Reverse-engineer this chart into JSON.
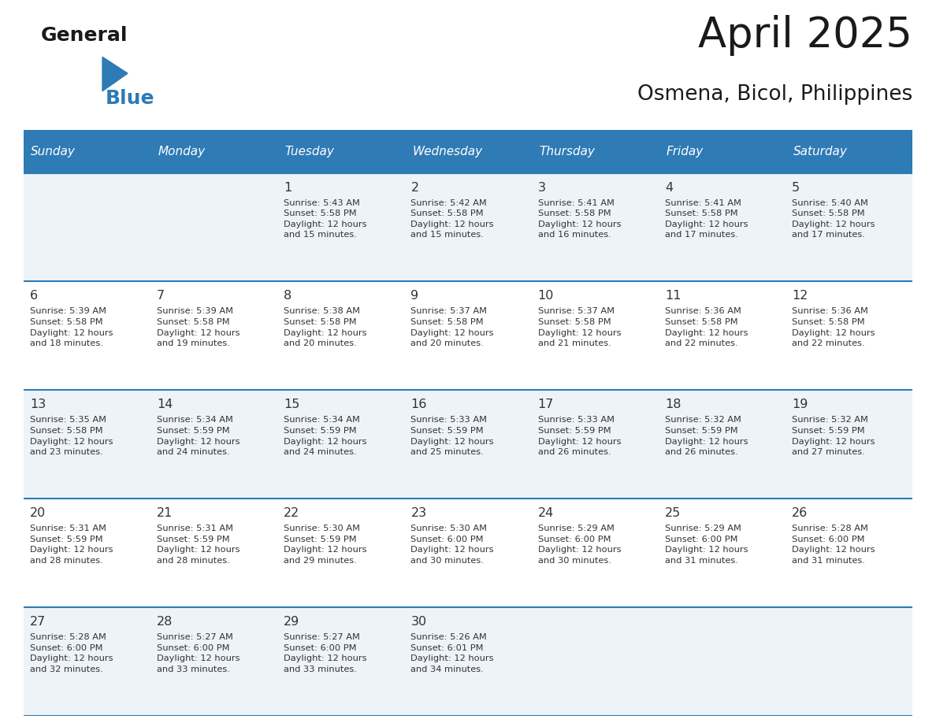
{
  "title": "April 2025",
  "subtitle": "Osmena, Bicol, Philippines",
  "days_of_week": [
    "Sunday",
    "Monday",
    "Tuesday",
    "Wednesday",
    "Thursday",
    "Friday",
    "Saturday"
  ],
  "header_bg": "#2E7BB5",
  "header_text_color": "#FFFFFF",
  "row_bg_odd": "#EEF3F8",
  "row_bg_even": "#FFFFFF",
  "border_color": "#2E7BB5",
  "text_color": "#333333",
  "calendar_data": [
    [
      "",
      "",
      "1\nSunrise: 5:43 AM\nSunset: 5:58 PM\nDaylight: 12 hours\nand 15 minutes.",
      "2\nSunrise: 5:42 AM\nSunset: 5:58 PM\nDaylight: 12 hours\nand 15 minutes.",
      "3\nSunrise: 5:41 AM\nSunset: 5:58 PM\nDaylight: 12 hours\nand 16 minutes.",
      "4\nSunrise: 5:41 AM\nSunset: 5:58 PM\nDaylight: 12 hours\nand 17 minutes.",
      "5\nSunrise: 5:40 AM\nSunset: 5:58 PM\nDaylight: 12 hours\nand 17 minutes."
    ],
    [
      "6\nSunrise: 5:39 AM\nSunset: 5:58 PM\nDaylight: 12 hours\nand 18 minutes.",
      "7\nSunrise: 5:39 AM\nSunset: 5:58 PM\nDaylight: 12 hours\nand 19 minutes.",
      "8\nSunrise: 5:38 AM\nSunset: 5:58 PM\nDaylight: 12 hours\nand 20 minutes.",
      "9\nSunrise: 5:37 AM\nSunset: 5:58 PM\nDaylight: 12 hours\nand 20 minutes.",
      "10\nSunrise: 5:37 AM\nSunset: 5:58 PM\nDaylight: 12 hours\nand 21 minutes.",
      "11\nSunrise: 5:36 AM\nSunset: 5:58 PM\nDaylight: 12 hours\nand 22 minutes.",
      "12\nSunrise: 5:36 AM\nSunset: 5:58 PM\nDaylight: 12 hours\nand 22 minutes."
    ],
    [
      "13\nSunrise: 5:35 AM\nSunset: 5:58 PM\nDaylight: 12 hours\nand 23 minutes.",
      "14\nSunrise: 5:34 AM\nSunset: 5:59 PM\nDaylight: 12 hours\nand 24 minutes.",
      "15\nSunrise: 5:34 AM\nSunset: 5:59 PM\nDaylight: 12 hours\nand 24 minutes.",
      "16\nSunrise: 5:33 AM\nSunset: 5:59 PM\nDaylight: 12 hours\nand 25 minutes.",
      "17\nSunrise: 5:33 AM\nSunset: 5:59 PM\nDaylight: 12 hours\nand 26 minutes.",
      "18\nSunrise: 5:32 AM\nSunset: 5:59 PM\nDaylight: 12 hours\nand 26 minutes.",
      "19\nSunrise: 5:32 AM\nSunset: 5:59 PM\nDaylight: 12 hours\nand 27 minutes."
    ],
    [
      "20\nSunrise: 5:31 AM\nSunset: 5:59 PM\nDaylight: 12 hours\nand 28 minutes.",
      "21\nSunrise: 5:31 AM\nSunset: 5:59 PM\nDaylight: 12 hours\nand 28 minutes.",
      "22\nSunrise: 5:30 AM\nSunset: 5:59 PM\nDaylight: 12 hours\nand 29 minutes.",
      "23\nSunrise: 5:30 AM\nSunset: 6:00 PM\nDaylight: 12 hours\nand 30 minutes.",
      "24\nSunrise: 5:29 AM\nSunset: 6:00 PM\nDaylight: 12 hours\nand 30 minutes.",
      "25\nSunrise: 5:29 AM\nSunset: 6:00 PM\nDaylight: 12 hours\nand 31 minutes.",
      "26\nSunrise: 5:28 AM\nSunset: 6:00 PM\nDaylight: 12 hours\nand 31 minutes."
    ],
    [
      "27\nSunrise: 5:28 AM\nSunset: 6:00 PM\nDaylight: 12 hours\nand 32 minutes.",
      "28\nSunrise: 5:27 AM\nSunset: 6:00 PM\nDaylight: 12 hours\nand 33 minutes.",
      "29\nSunrise: 5:27 AM\nSunset: 6:00 PM\nDaylight: 12 hours\nand 33 minutes.",
      "30\nSunrise: 5:26 AM\nSunset: 6:01 PM\nDaylight: 12 hours\nand 34 minutes.",
      "",
      "",
      ""
    ]
  ],
  "logo_general_color": "#1a1a1a",
  "logo_blue_color": "#2E7BB5",
  "fig_width": 11.88,
  "fig_height": 9.18
}
